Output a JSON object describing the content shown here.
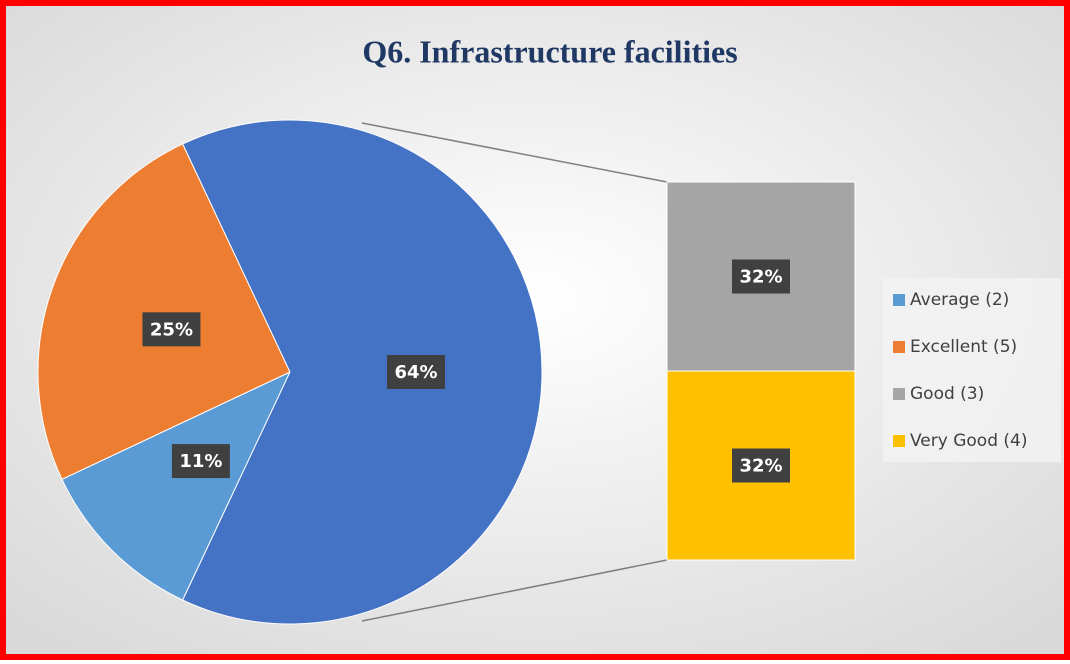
{
  "chart_data": {
    "type": "bar-of-pie",
    "title": "Q6. Infrastructure facilities",
    "pie": {
      "values": [
        11,
        25,
        64
      ],
      "value_labels": [
        "11%",
        "25%",
        "64%"
      ],
      "colors": [
        "#5b9bd5",
        "#ed7d31",
        "#4472c4"
      ]
    },
    "bar": {
      "values": [
        32,
        32
      ],
      "value_labels": [
        "32%",
        "32%"
      ],
      "colors": [
        "#a5a5a5",
        "#ffc000"
      ]
    },
    "legend": {
      "labels": [
        "Average (2)",
        "Excellent (5)",
        "Good (3)",
        "Very Good (4)"
      ],
      "position": "right"
    }
  }
}
